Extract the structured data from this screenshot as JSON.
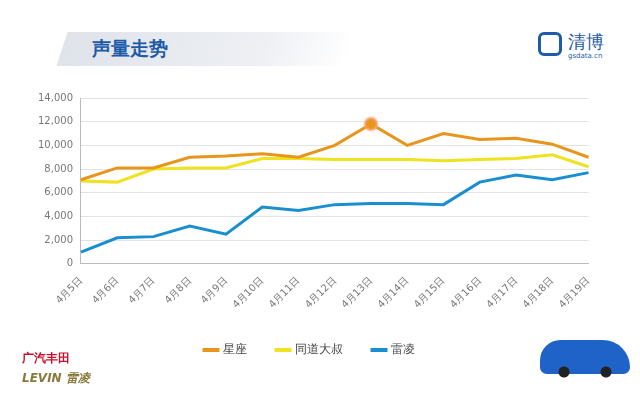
{
  "chart_data": {
    "type": "line",
    "title": "声量走势",
    "annotations": [
      "清博",
      "gsdata.cn",
      "广汽丰田",
      "LEVIN 雷凌"
    ],
    "categories": [
      "4月5日",
      "4月6日",
      "4月7日",
      "4月8日",
      "4月9日",
      "4月10日",
      "4月11日",
      "4月12日",
      "4月13日",
      "4月14日",
      "4月15日",
      "4月16日",
      "4月17日",
      "4月18日",
      "4月19日"
    ],
    "series": [
      {
        "name": "星座",
        "color": "#e8951c",
        "values": [
          7100,
          8100,
          8100,
          9000,
          9100,
          9300,
          9000,
          10000,
          11800,
          10000,
          11000,
          10500,
          10600,
          10100,
          9000
        ]
      },
      {
        "name": "同道大叔",
        "color": "#efe21f",
        "values": [
          7000,
          6900,
          8000,
          8100,
          8100,
          8900,
          8900,
          8800,
          8800,
          8800,
          8700,
          8800,
          8900,
          9200,
          8200
        ]
      },
      {
        "name": "雷凌",
        "color": "#1a8fd0",
        "values": [
          1000,
          2200,
          2300,
          3200,
          2500,
          4800,
          4500,
          5000,
          5100,
          5100,
          5000,
          6900,
          7500,
          7100,
          7700
        ]
      }
    ],
    "ylim": [
      0,
      14000
    ],
    "yticks": [
      0,
      2000,
      4000,
      6000,
      8000,
      10000,
      12000,
      14000
    ],
    "grid": true,
    "legend": "bottom"
  }
}
